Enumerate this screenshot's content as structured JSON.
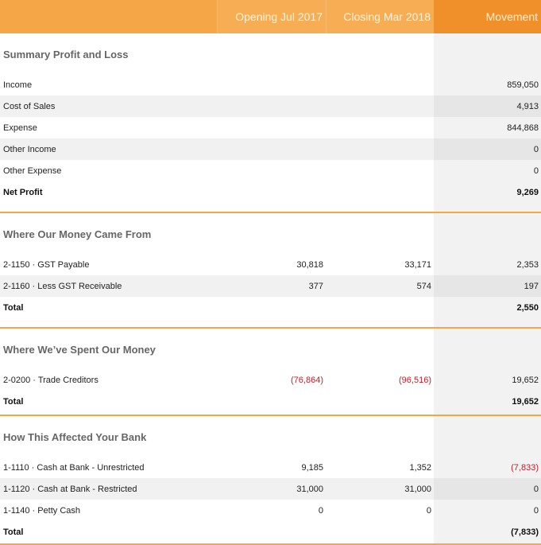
{
  "header": {
    "opening": "Opening Jul 2017",
    "closing": "Closing Mar 2018",
    "movement": "Movement"
  },
  "pl": {
    "title": "Summary Profit and Loss",
    "rows": [
      {
        "label": "Income",
        "movement": "859,050"
      },
      {
        "label": "Cost of Sales",
        "movement": "4,913"
      },
      {
        "label": "Expense",
        "movement": "844,868"
      },
      {
        "label": "Other Income",
        "movement": "0"
      },
      {
        "label": "Other Expense",
        "movement": "0"
      }
    ],
    "total_label": "Net Profit",
    "total_movement": "9,269"
  },
  "came_from": {
    "title": "Where Our Money Came From",
    "rows": [
      {
        "label": "2-1150 · GST Payable",
        "opening": "30,818",
        "closing": "33,171",
        "movement": "2,353"
      },
      {
        "label": "2-1160 · Less GST Receivable",
        "opening": "377",
        "closing": "574",
        "movement": "197"
      }
    ],
    "total_label": "Total",
    "total_movement": "2,550"
  },
  "spent": {
    "title": "Where We’ve Spent Our Money",
    "rows": [
      {
        "label": "2-0200 · Trade Creditors",
        "opening": "(76,864)",
        "closing": "(96,516)",
        "movement": "19,652"
      }
    ],
    "total_label": "Total",
    "total_movement": "19,652"
  },
  "bank": {
    "title": "How This Affected Your Bank",
    "rows": [
      {
        "label": "1-1110 · Cash at Bank - Unrestricted",
        "opening": "9,185",
        "closing": "1,352",
        "movement": "(7,833)"
      },
      {
        "label": "1-1120 · Cash at Bank - Restricted",
        "opening": "31,000",
        "closing": "31,000",
        "movement": "0"
      },
      {
        "label": "1-1140 · Petty Cash",
        "opening": "0",
        "closing": "0",
        "movement": "0"
      }
    ],
    "total_label": "Total",
    "total_movement": "(7,833)"
  },
  "colors": {
    "accent": "#f5a646",
    "negative": "#c0202a"
  }
}
